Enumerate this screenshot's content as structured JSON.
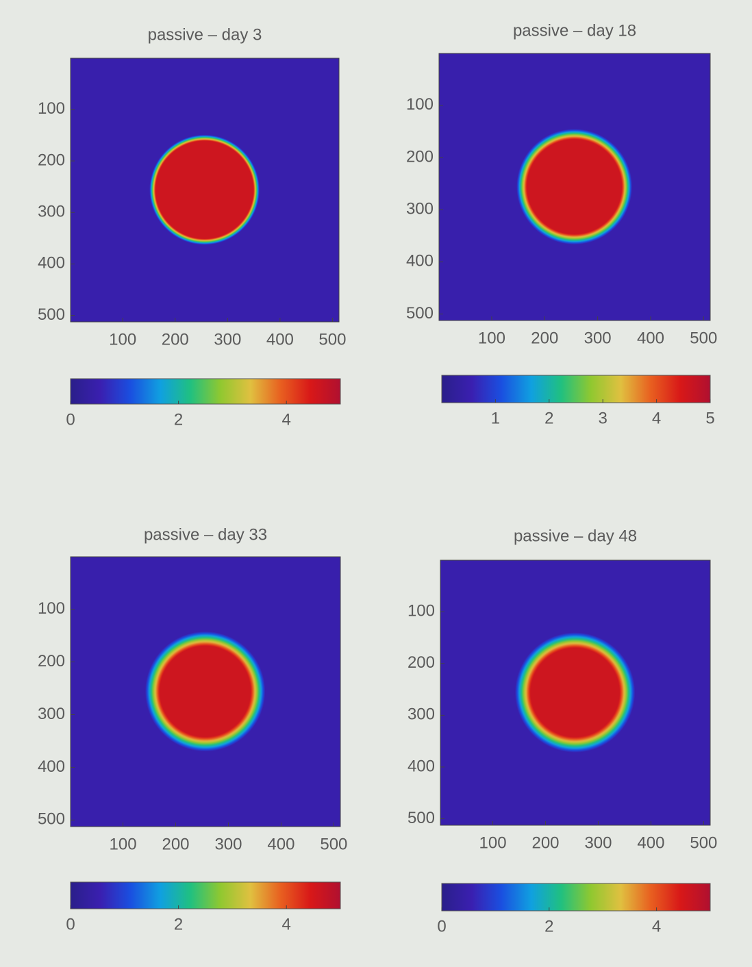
{
  "chart_data": [
    {
      "type": "heatmap",
      "title": "passive – day 3",
      "xlim": [
        0.5,
        512.5
      ],
      "ylim": [
        0.5,
        512.5
      ],
      "y_reversed": true,
      "xticks": [
        100,
        200,
        300,
        400,
        500
      ],
      "yticks": [
        100,
        200,
        300,
        400,
        500
      ],
      "disk_center": [
        256,
        256
      ],
      "disk_radius": 100,
      "edge_width": 6,
      "inside_value": 4.6,
      "outside_value": 0.5,
      "clim": [
        0,
        5
      ],
      "cticks": [
        0,
        2,
        4
      ],
      "colormap": [
        "#2a1f8a",
        "#3a1fb0",
        "#1a4fe0",
        "#10a0e0",
        "#20c080",
        "#90c830",
        "#e0c040",
        "#e86020",
        "#d81818",
        "#b01030"
      ]
    },
    {
      "type": "heatmap",
      "title": "passive – day 18",
      "xlim": [
        0.5,
        512.5
      ],
      "ylim": [
        0.5,
        512.5
      ],
      "y_reversed": true,
      "xticks": [
        100,
        200,
        300,
        400,
        500
      ],
      "yticks": [
        100,
        200,
        300,
        400,
        500
      ],
      "disk_center": [
        256,
        256
      ],
      "disk_radius": 100,
      "edge_width": 10,
      "inside_value": 4.6,
      "outside_value": 0.5,
      "clim": [
        0,
        5
      ],
      "cticks": [
        1,
        2,
        3,
        4,
        5
      ],
      "colormap": [
        "#2a1f8a",
        "#3a1fb0",
        "#1a4fe0",
        "#10a0e0",
        "#20c080",
        "#90c830",
        "#e0c040",
        "#e86020",
        "#d81818",
        "#b01030"
      ]
    },
    {
      "type": "heatmap",
      "title": "passive – day 33",
      "xlim": [
        0.5,
        512.5
      ],
      "ylim": [
        0.5,
        512.5
      ],
      "y_reversed": true,
      "xticks": [
        100,
        200,
        300,
        400,
        500
      ],
      "yticks": [
        100,
        200,
        300,
        400,
        500
      ],
      "disk_center": [
        256,
        256
      ],
      "disk_radius": 100,
      "edge_width": 14,
      "inside_value": 4.6,
      "outside_value": 0.5,
      "clim": [
        0,
        5
      ],
      "cticks": [
        0,
        2,
        4
      ],
      "colormap": [
        "#2a1f8a",
        "#3a1fb0",
        "#1a4fe0",
        "#10a0e0",
        "#20c080",
        "#90c830",
        "#e0c040",
        "#e86020",
        "#d81818",
        "#b01030"
      ]
    },
    {
      "type": "heatmap",
      "title": "passive – day 48",
      "xlim": [
        0.5,
        512.5
      ],
      "ylim": [
        0.5,
        512.5
      ],
      "y_reversed": true,
      "xticks": [
        100,
        200,
        300,
        400,
        500
      ],
      "yticks": [
        100,
        200,
        300,
        400,
        500
      ],
      "disk_center": [
        256,
        256
      ],
      "disk_radius": 100,
      "edge_width": 15,
      "inside_value": 4.6,
      "outside_value": 0.5,
      "clim": [
        0,
        5
      ],
      "cticks": [
        0,
        2,
        4
      ],
      "colormap": [
        "#2a1f8a",
        "#3a1fb0",
        "#1a4fe0",
        "#10a0e0",
        "#20c080",
        "#90c830",
        "#e0c040",
        "#e86020",
        "#d81818",
        "#b01030"
      ]
    }
  ]
}
